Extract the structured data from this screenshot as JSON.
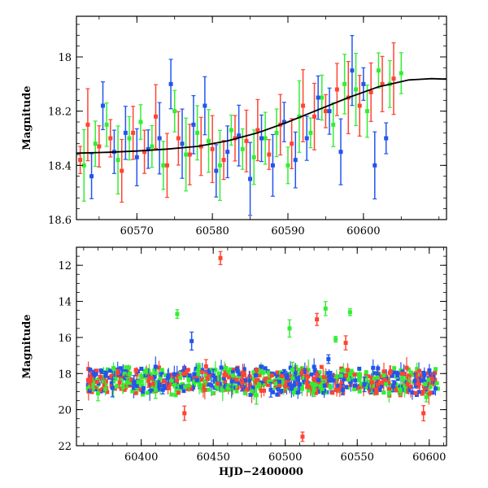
{
  "chart_data": [
    {
      "type": "scatter",
      "ylabel": "Magnitude",
      "xlabel": "",
      "xlim": [
        60562,
        60611
      ],
      "ylim": [
        18.6,
        17.85
      ],
      "y_inverted": true,
      "xticks": [
        60570,
        60580,
        60590,
        60600
      ],
      "yticks": [
        18,
        18.2,
        18.4,
        18.6
      ],
      "xticklabels": [
        "60570",
        "60580",
        "60590",
        "60600"
      ],
      "yticklabels": [
        "18",
        "18.2",
        "18.4",
        "18.6"
      ],
      "series": [
        {
          "color": "#ff4433",
          "x": [
            60562.5,
            60563.5,
            60565,
            60566.5,
            60568,
            60569.5,
            60571,
            60572.5,
            60574,
            60575.5,
            60577,
            60578.5,
            60580,
            60581.5,
            60583,
            60584.5,
            60586,
            60587.5,
            60589,
            60590.5,
            60592,
            60593.5,
            60595,
            60596.5,
            60598,
            60599.5,
            60601,
            60602.5,
            60604
          ],
          "y": [
            18.38,
            18.25,
            18.33,
            18.3,
            18.42,
            18.28,
            18.35,
            18.22,
            18.4,
            18.3,
            18.36,
            18.33,
            18.34,
            18.38,
            18.3,
            18.31,
            18.27,
            18.36,
            18.25,
            18.32,
            18.18,
            18.22,
            18.2,
            18.12,
            18.15,
            18.18,
            18.13,
            18.1,
            18.08
          ]
        },
        {
          "color": "#33ee33",
          "x": [
            60563,
            60564.5,
            60566,
            60567.5,
            60569,
            60570.5,
            60572,
            60573.5,
            60575,
            60576.5,
            60578,
            60579.5,
            60581,
            60582.5,
            60584,
            60585.5,
            60587,
            60588.5,
            60590,
            60591.5,
            60593,
            60594.5,
            60596,
            60597.5,
            60599,
            60600.5,
            60602,
            60603.5,
            60605
          ],
          "y": [
            18.4,
            18.32,
            18.25,
            18.38,
            18.3,
            18.24,
            18.33,
            18.4,
            18.2,
            18.36,
            18.28,
            18.31,
            18.4,
            18.27,
            18.34,
            18.37,
            18.3,
            18.28,
            18.4,
            18.22,
            18.28,
            18.15,
            18.25,
            18.1,
            18.12,
            18.2,
            18.05,
            18.1,
            18.06
          ]
        },
        {
          "color": "#2255ee",
          "x": [
            60564,
            60565.5,
            60567,
            60568.5,
            60570,
            60571.5,
            60573,
            60574.5,
            60576,
            60577.5,
            60579,
            60580.5,
            60582,
            60583.5,
            60585,
            60586.5,
            60588,
            60589.5,
            60591,
            60592.5,
            60594,
            60595.5,
            60597,
            60598.5,
            60600,
            60601.5,
            60603
          ],
          "y": [
            18.44,
            18.18,
            18.35,
            18.28,
            18.37,
            18.34,
            18.3,
            18.1,
            18.32,
            18.25,
            18.18,
            18.42,
            18.35,
            18.29,
            18.45,
            18.3,
            18.4,
            18.24,
            18.38,
            18.3,
            18.15,
            18.2,
            18.35,
            18.05,
            18.1,
            18.4,
            18.3
          ]
        }
      ],
      "model_curve": {
        "color": "#000000",
        "x": [
          60562,
          60566,
          60570,
          60574,
          60578,
          60582,
          60586,
          60590,
          60594,
          60598,
          60602,
          60606,
          60609,
          60611
        ],
        "y": [
          18.355,
          18.352,
          18.347,
          18.34,
          18.33,
          18.31,
          18.28,
          18.24,
          18.195,
          18.15,
          18.11,
          18.085,
          18.08,
          18.082
        ]
      }
    },
    {
      "type": "scatter",
      "ylabel": "Magnitude",
      "xlabel": "HJD−2400000",
      "xlim": [
        60355,
        60612
      ],
      "ylim": [
        22,
        11
      ],
      "y_inverted": true,
      "xticks": [
        60400,
        60450,
        60500,
        60550,
        60600
      ],
      "yticks": [
        12,
        14,
        16,
        18,
        20,
        22
      ],
      "xticklabels": [
        "60400",
        "60450",
        "60500",
        "60550",
        "60600"
      ],
      "yticklabels": [
        "12",
        "14",
        "16",
        "18",
        "20",
        "22"
      ],
      "series": [
        {
          "color": "#33ee33",
          "x": [
            60370,
            60390,
            60410,
            60425,
            60440,
            60460,
            60480,
            60503,
            60505,
            60520,
            60528,
            60535,
            60545,
            60560,
            60580,
            60598
          ],
          "y": [
            19.1,
            18.5,
            18.9,
            14.7,
            17.6,
            18.8,
            19.2,
            15.5,
            17.8,
            18.9,
            14.4,
            16.1,
            14.6,
            18.7,
            18.9,
            19.3
          ]
        },
        {
          "color": "#2255ee",
          "x": [
            60380,
            60395,
            60415,
            60435,
            60450,
            60470,
            60490,
            60510,
            60530,
            60540,
            60555,
            60575,
            60590,
            60603
          ],
          "y": [
            18.8,
            18.5,
            18.9,
            16.2,
            18.1,
            18.7,
            18.9,
            18.6,
            17.2,
            18.9,
            18.6,
            18.7,
            18.4,
            18.2
          ]
        },
        {
          "color": "#ff4433",
          "x": [
            60365,
            60385,
            60405,
            60430,
            60445,
            60455,
            60470,
            60500,
            60512,
            60522,
            60542,
            60560,
            60585,
            60596,
            60602
          ],
          "y": [
            18.4,
            18.5,
            18.4,
            20.2,
            17.6,
            11.6,
            18.5,
            18.7,
            21.5,
            15.0,
            16.3,
            18.5,
            18.6,
            20.2,
            18.3
          ]
        }
      ],
      "baseline_mag": 18.4
    }
  ]
}
